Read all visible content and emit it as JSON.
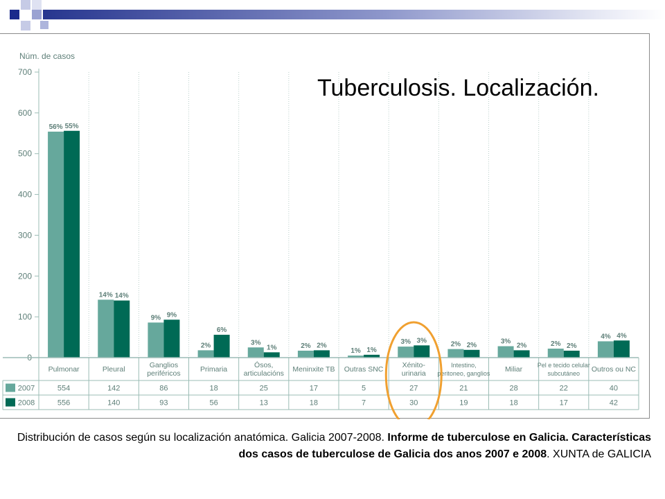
{
  "slide": {
    "title": "Tuberculosis. Localización.",
    "caption": {
      "part1": "Distribución de casos según su localización anatómica. Galicia 2007-2008. ",
      "part2_bold": "Informe de tuberculose en Galicia. Características dos casos de tuberculose de Galicia dos anos 2007 e 2008",
      "part3": ". XUNTA de GALICIA"
    }
  },
  "colors": {
    "series_2007": "#66a89c",
    "series_2008": "#006a55",
    "axis_text": "#5e7f78",
    "highlight_ellipse": "#f0a030",
    "grid": "#9bbcb5"
  },
  "chart_data": {
    "type": "bar",
    "ylabel": "Núm. de casos",
    "ylim": [
      0,
      700
    ],
    "yticks": [
      0,
      100,
      200,
      300,
      400,
      500,
      600,
      700
    ],
    "grid": true,
    "categories": [
      [
        "Pulmonar"
      ],
      [
        "Pleural"
      ],
      [
        "Ganglios",
        "periféricos"
      ],
      [
        "Primaria"
      ],
      [
        "Ósos,",
        "articulacións"
      ],
      [
        "Meninxite TB"
      ],
      [
        "Outras SNC"
      ],
      [
        "Xénito-",
        "urinaria"
      ],
      [
        "Intestino,",
        "peritoneo, ganglios"
      ],
      [
        "Miliar"
      ],
      [
        "Pel e tecido celular",
        "subcutáneo"
      ],
      [
        "Outros ou NC"
      ]
    ],
    "series": [
      {
        "name": "2007",
        "values": [
          554,
          142,
          86,
          18,
          25,
          17,
          5,
          27,
          21,
          28,
          22,
          40
        ],
        "pct_labels": [
          "56%",
          "14%",
          "9%",
          "2%",
          "3%",
          "2%",
          "1%",
          "3%",
          "2%",
          "3%",
          "2%",
          "4%"
        ]
      },
      {
        "name": "2008",
        "values": [
          556,
          140,
          93,
          56,
          13,
          18,
          7,
          30,
          19,
          18,
          17,
          42
        ],
        "pct_labels": [
          "55%",
          "14%",
          "9%",
          "6%",
          "1%",
          "2%",
          "1%",
          "3%",
          "2%",
          "2%",
          "2%",
          "4%"
        ]
      }
    ],
    "table_rows": [
      {
        "label": "2007",
        "values": [
          "554",
          "142",
          "86",
          "18",
          "25",
          "17",
          "5",
          "27",
          "21",
          "28",
          "22",
          "40"
        ]
      },
      {
        "label": "2008",
        "values": [
          "556",
          "140",
          "93",
          "56",
          "13",
          "18",
          "7",
          "30",
          "19",
          "18",
          "17",
          "42"
        ]
      }
    ],
    "highlighted_category": "Xénito- urinaria"
  }
}
